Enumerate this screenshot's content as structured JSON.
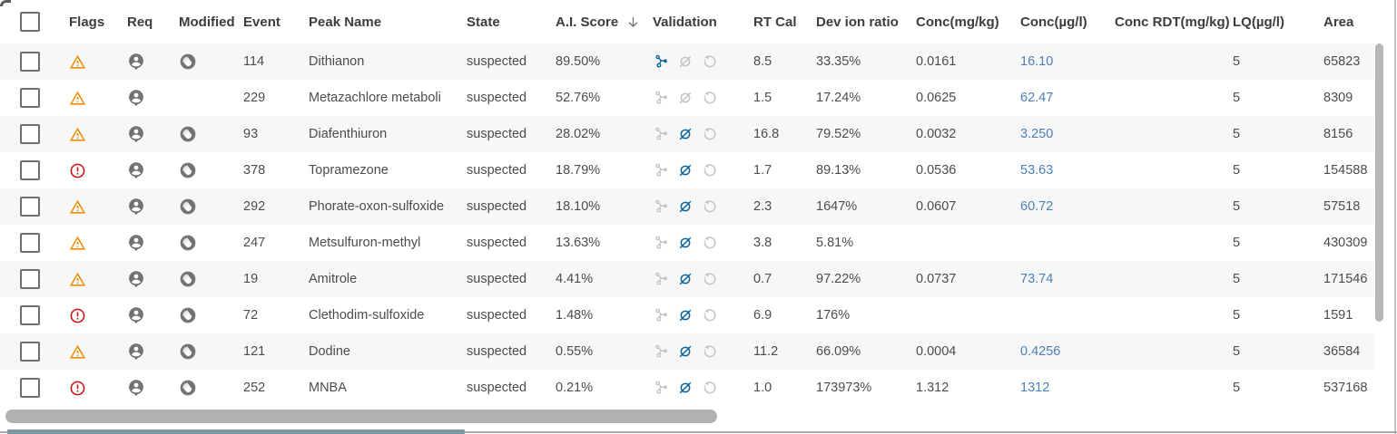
{
  "columns": [
    {
      "key": "select",
      "label": ""
    },
    {
      "key": "flag",
      "label": "Flags"
    },
    {
      "key": "req",
      "label": "Req"
    },
    {
      "key": "modified",
      "label": "Modified"
    },
    {
      "key": "event",
      "label": "Event"
    },
    {
      "key": "peak_name",
      "label": "Peak Name"
    },
    {
      "key": "state",
      "label": "State"
    },
    {
      "key": "ai_score",
      "label": "A.I. Score"
    },
    {
      "key": "validation",
      "label": "Validation"
    },
    {
      "key": "rt_cal",
      "label": "RT Cal"
    },
    {
      "key": "dev_ion_ratio",
      "label": "Dev ion ratio"
    },
    {
      "key": "conc_mg_kg",
      "label": "Conc(mg/kg)"
    },
    {
      "key": "conc_ug_l",
      "label": "Conc(µg/l)"
    },
    {
      "key": "conc_rdt_mg_kg",
      "label": "Conc RDT(mg/kg)"
    },
    {
      "key": "lq_ug_l",
      "label": "LQ(µg/l)"
    },
    {
      "key": "area",
      "label": "Area"
    }
  ],
  "sort": {
    "column": "ai_score",
    "direction": "desc"
  },
  "rows": [
    {
      "flag": "warning",
      "req": true,
      "modified": true,
      "event": "114",
      "peak_name": "Dithianon",
      "state": "suspected",
      "ai_score": "89.50%",
      "validation": {
        "molecule": true,
        "slash": false,
        "restore": false
      },
      "rt_cal": "8.5",
      "dev_ion_ratio": "33.35%",
      "conc_mg_kg": "0.0161",
      "conc_ug_l": "16.10",
      "conc_rdt_mg_kg": "",
      "lq_ug_l": "5",
      "area": "65823"
    },
    {
      "flag": "warning",
      "req": true,
      "modified": false,
      "event": "229",
      "peak_name": "Metazachlore metaboli",
      "state": "suspected",
      "ai_score": "52.76%",
      "validation": {
        "molecule": false,
        "slash": false,
        "restore": false
      },
      "rt_cal": "1.5",
      "dev_ion_ratio": "17.24%",
      "conc_mg_kg": "0.0625",
      "conc_ug_l": "62.47",
      "conc_rdt_mg_kg": "",
      "lq_ug_l": "5",
      "area": "8309"
    },
    {
      "flag": "warning",
      "req": true,
      "modified": true,
      "event": "93",
      "peak_name": "Diafenthiuron",
      "state": "suspected",
      "ai_score": "28.02%",
      "validation": {
        "molecule": false,
        "slash": true,
        "restore": false
      },
      "rt_cal": "16.8",
      "dev_ion_ratio": "79.52%",
      "conc_mg_kg": "0.0032",
      "conc_ug_l": "3.250",
      "conc_rdt_mg_kg": "",
      "lq_ug_l": "5",
      "area": "8156"
    },
    {
      "flag": "error",
      "req": true,
      "modified": true,
      "event": "378",
      "peak_name": "Topramezone",
      "state": "suspected",
      "ai_score": "18.79%",
      "validation": {
        "molecule": false,
        "slash": true,
        "restore": false
      },
      "rt_cal": "1.7",
      "dev_ion_ratio": "89.13%",
      "conc_mg_kg": "0.0536",
      "conc_ug_l": "53.63",
      "conc_rdt_mg_kg": "",
      "lq_ug_l": "5",
      "area": "154588"
    },
    {
      "flag": "warning",
      "req": true,
      "modified": true,
      "event": "292",
      "peak_name": "Phorate-oxon-sulfoxide",
      "state": "suspected",
      "ai_score": "18.10%",
      "validation": {
        "molecule": false,
        "slash": true,
        "restore": false
      },
      "rt_cal": "2.3",
      "dev_ion_ratio": "1647%",
      "conc_mg_kg": "0.0607",
      "conc_ug_l": "60.72",
      "conc_rdt_mg_kg": "",
      "lq_ug_l": "5",
      "area": "57518"
    },
    {
      "flag": "warning",
      "req": true,
      "modified": true,
      "event": "247",
      "peak_name": "Metsulfuron-methyl",
      "state": "suspected",
      "ai_score": "13.63%",
      "validation": {
        "molecule": false,
        "slash": true,
        "restore": false
      },
      "rt_cal": "3.8",
      "dev_ion_ratio": "5.81%",
      "conc_mg_kg": "",
      "conc_ug_l": "",
      "conc_rdt_mg_kg": "",
      "lq_ug_l": "5",
      "area": "430309"
    },
    {
      "flag": "warning",
      "req": true,
      "modified": true,
      "event": "19",
      "peak_name": "Amitrole",
      "state": "suspected",
      "ai_score": "4.41%",
      "validation": {
        "molecule": false,
        "slash": true,
        "restore": false
      },
      "rt_cal": "0.7",
      "dev_ion_ratio": "97.22%",
      "conc_mg_kg": "0.0737",
      "conc_ug_l": "73.74",
      "conc_rdt_mg_kg": "",
      "lq_ug_l": "5",
      "area": "171546"
    },
    {
      "flag": "error",
      "req": true,
      "modified": true,
      "event": "72",
      "peak_name": "Clethodim-sulfoxide",
      "state": "suspected",
      "ai_score": "1.48%",
      "validation": {
        "molecule": false,
        "slash": true,
        "restore": false
      },
      "rt_cal": "6.9",
      "dev_ion_ratio": "176%",
      "conc_mg_kg": "",
      "conc_ug_l": "",
      "conc_rdt_mg_kg": "",
      "lq_ug_l": "5",
      "area": "1591"
    },
    {
      "flag": "warning",
      "req": true,
      "modified": true,
      "event": "121",
      "peak_name": "Dodine",
      "state": "suspected",
      "ai_score": "0.55%",
      "validation": {
        "molecule": false,
        "slash": true,
        "restore": false
      },
      "rt_cal": "11.2",
      "dev_ion_ratio": "66.09%",
      "conc_mg_kg": "0.0004",
      "conc_ug_l": "0.4256",
      "conc_rdt_mg_kg": "",
      "lq_ug_l": "5",
      "area": "36584"
    },
    {
      "flag": "error",
      "req": true,
      "modified": true,
      "event": "252",
      "peak_name": "MNBA",
      "state": "suspected",
      "ai_score": "0.21%",
      "validation": {
        "molecule": false,
        "slash": true,
        "restore": false
      },
      "rt_cal": "1.0",
      "dev_ion_ratio": "173973%",
      "conc_mg_kg": "1.312",
      "conc_ug_l": "1312",
      "conc_rdt_mg_kg": "",
      "lq_ug_l": "5",
      "area": "537168"
    }
  ],
  "icons": {
    "flag_warning": "warning-triangle",
    "flag_error": "error-circle",
    "req": "person-badge",
    "modified": "hand-circle",
    "validation": [
      "molecule",
      "slash-circle",
      "restore-history"
    ],
    "sort": "arrow-down"
  },
  "colors": {
    "validation_active": "#0F64A0",
    "validation_inactive": "#C4C4C4",
    "warning_orange": "#EE9213",
    "error_red": "#CC1111",
    "icon_gray": "#747474",
    "link_blue": "#4D80B8",
    "zebra_row": "#F7F7F7"
  },
  "scrollbars": {
    "horizontal_visible": true,
    "vertical_visible": true
  }
}
